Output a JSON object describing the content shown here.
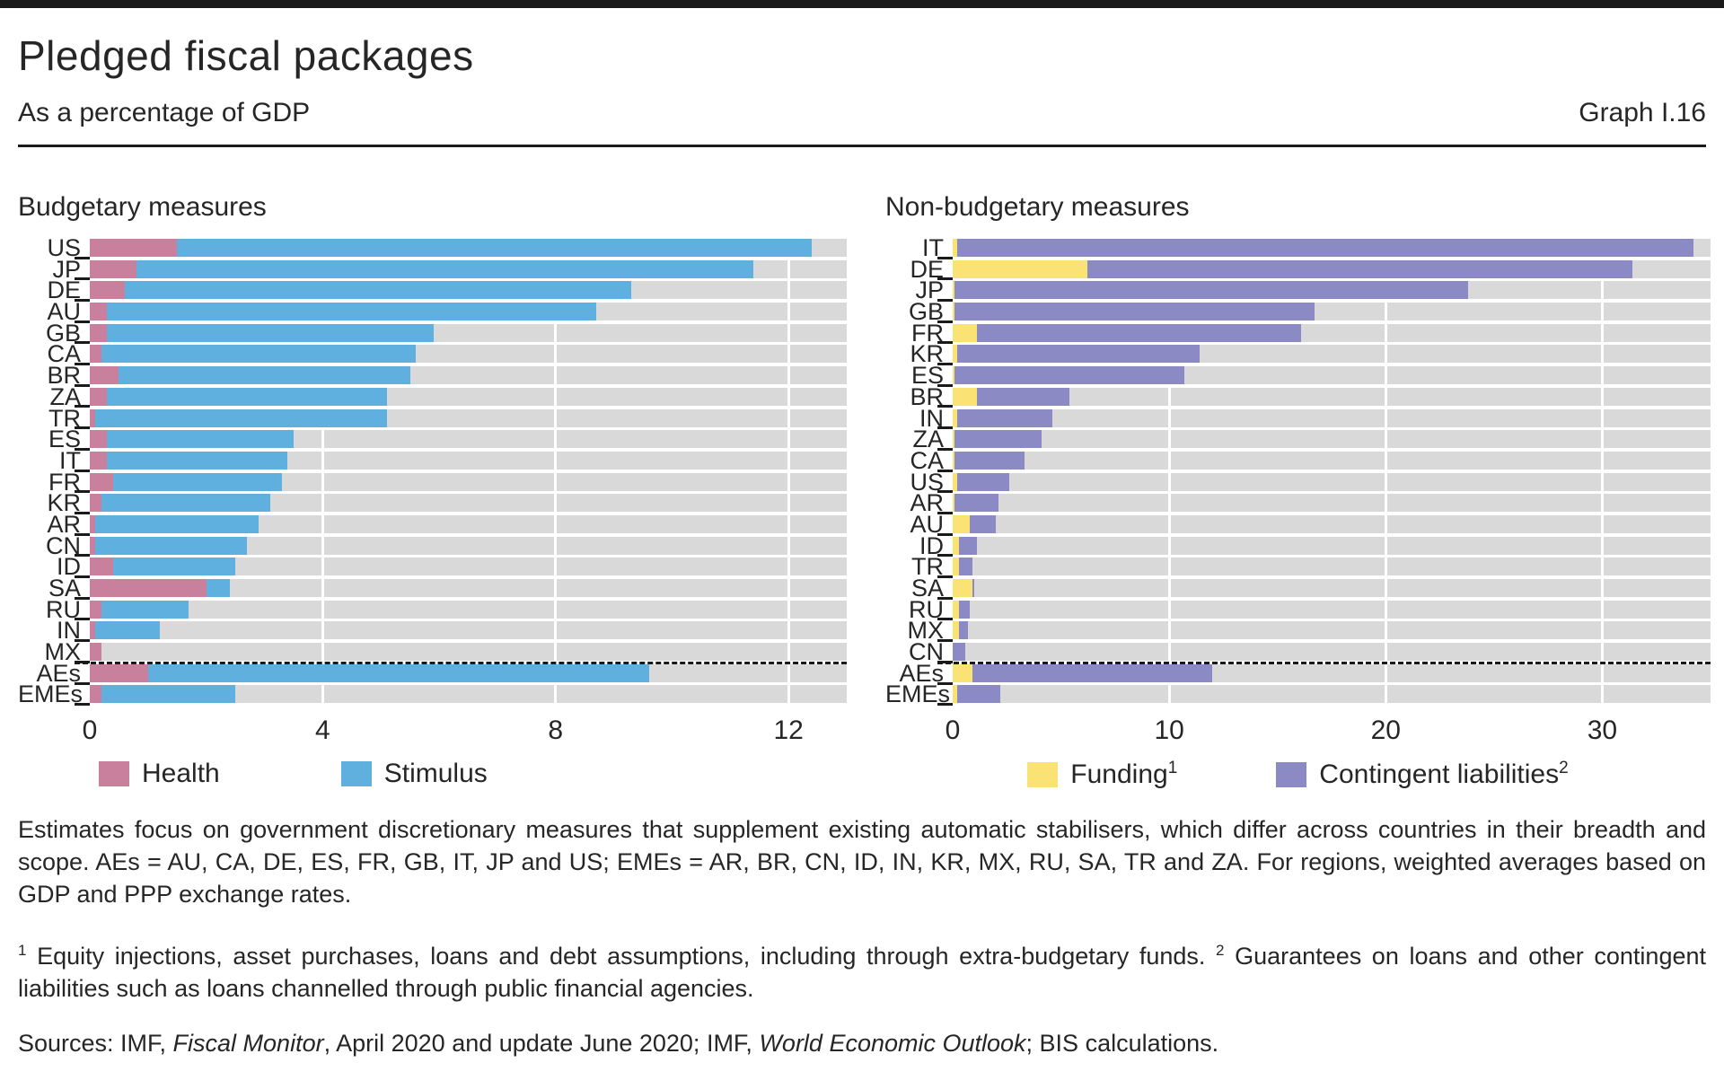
{
  "header": {
    "title": "Pledged fiscal packages",
    "subtitle": "As a percentage of GDP",
    "graph_label": "Graph I.16"
  },
  "colors": {
    "health": "#c9809c",
    "stimulus": "#5fafdf",
    "funding": "#fae374",
    "contingent": "#8c8ac5",
    "track": "#d9d9d9",
    "rule": "#1a1a1a"
  },
  "chart_data": [
    {
      "type": "bar",
      "orientation": "horizontal-stacked",
      "panel_title": "Budgetary measures",
      "xlim": [
        0,
        13
      ],
      "xticks": [
        0,
        4,
        8,
        12
      ],
      "gridlines": [
        4,
        8,
        12
      ],
      "grid": true,
      "legend_position": "bottom",
      "categories": [
        "US",
        "JP",
        "DE",
        "AU",
        "GB",
        "CA",
        "BR",
        "ZA",
        "TR",
        "ES",
        "IT",
        "FR",
        "KR",
        "AR",
        "CN",
        "ID",
        "SA",
        "RU",
        "IN",
        "MX",
        "AEs",
        "EMEs"
      ],
      "separator_after_index": 20,
      "series": [
        {
          "name": "Health",
          "sup": "",
          "color": "#c9809c",
          "values": [
            1.5,
            0.8,
            0.6,
            0.3,
            0.3,
            0.2,
            0.5,
            0.3,
            0.1,
            0.3,
            0.3,
            0.4,
            0.2,
            0.1,
            0.1,
            0.4,
            2.0,
            0.2,
            0.1,
            0.2,
            1.0,
            0.2
          ]
        },
        {
          "name": "Stimulus",
          "sup": "",
          "color": "#5fafdf",
          "values": [
            10.9,
            10.6,
            8.7,
            8.4,
            5.6,
            5.4,
            5.0,
            4.8,
            5.0,
            3.2,
            3.1,
            2.9,
            2.9,
            2.8,
            2.6,
            2.1,
            0.4,
            1.5,
            1.1,
            0.0,
            8.6,
            2.3
          ]
        }
      ]
    },
    {
      "type": "bar",
      "orientation": "horizontal-stacked",
      "panel_title": "Non-budgetary measures",
      "xlim": [
        0,
        35
      ],
      "xticks": [
        0,
        10,
        20,
        30
      ],
      "gridlines": [
        10,
        20,
        30
      ],
      "grid": true,
      "legend_position": "bottom",
      "categories": [
        "IT",
        "DE",
        "JP",
        "GB",
        "FR",
        "KR",
        "ES",
        "BR",
        "IN",
        "ZA",
        "CA",
        "US",
        "AR",
        "AU",
        "ID",
        "TR",
        "SA",
        "RU",
        "MX",
        "CN",
        "AEs",
        "EMEs"
      ],
      "separator_after_index": 20,
      "series": [
        {
          "name": "Funding",
          "sup": "1",
          "color": "#fae374",
          "values": [
            0.2,
            6.2,
            0.1,
            0.1,
            1.1,
            0.2,
            0.1,
            1.1,
            0.2,
            0.1,
            0.1,
            0.2,
            0.1,
            0.8,
            0.3,
            0.3,
            0.9,
            0.3,
            0.3,
            0.0,
            0.9,
            0.2
          ]
        },
        {
          "name": "Contingent liabilities",
          "sup": "2",
          "color": "#8c8ac5",
          "values": [
            34.0,
            25.2,
            23.7,
            16.6,
            15.0,
            11.2,
            10.6,
            4.3,
            4.4,
            4.0,
            3.2,
            2.4,
            2.0,
            1.2,
            0.8,
            0.6,
            0.1,
            0.5,
            0.4,
            0.6,
            11.1,
            2.0
          ]
        }
      ]
    }
  ],
  "footnote_main": "Estimates focus on government discretionary measures that supplement existing automatic stabilisers, which differ across countries in their breadth and scope. AEs = AU, CA, DE, ES, FR, GB, IT, JP and US; EMEs = AR, BR, CN, ID, IN, KR, MX, RU, SA, TR and ZA. For regions, weighted averages based on GDP and PPP exchange rates.",
  "footnote_items": [
    {
      "sup": "1",
      "text": " Equity injections, asset purchases, loans and debt assumptions, including through extra-budgetary funds.   "
    },
    {
      "sup": "2",
      "text": " Guarantees on loans and other contingent liabilities such as loans channelled through public financial agencies."
    }
  ],
  "sources_parts": [
    {
      "text": "Sources: IMF, ",
      "italic": false
    },
    {
      "text": "Fiscal Monitor",
      "italic": true
    },
    {
      "text": ", April 2020 and update June 2020; IMF, ",
      "italic": false
    },
    {
      "text": "World Economic Outlook",
      "italic": true
    },
    {
      "text": "; BIS calculations.",
      "italic": false
    }
  ]
}
